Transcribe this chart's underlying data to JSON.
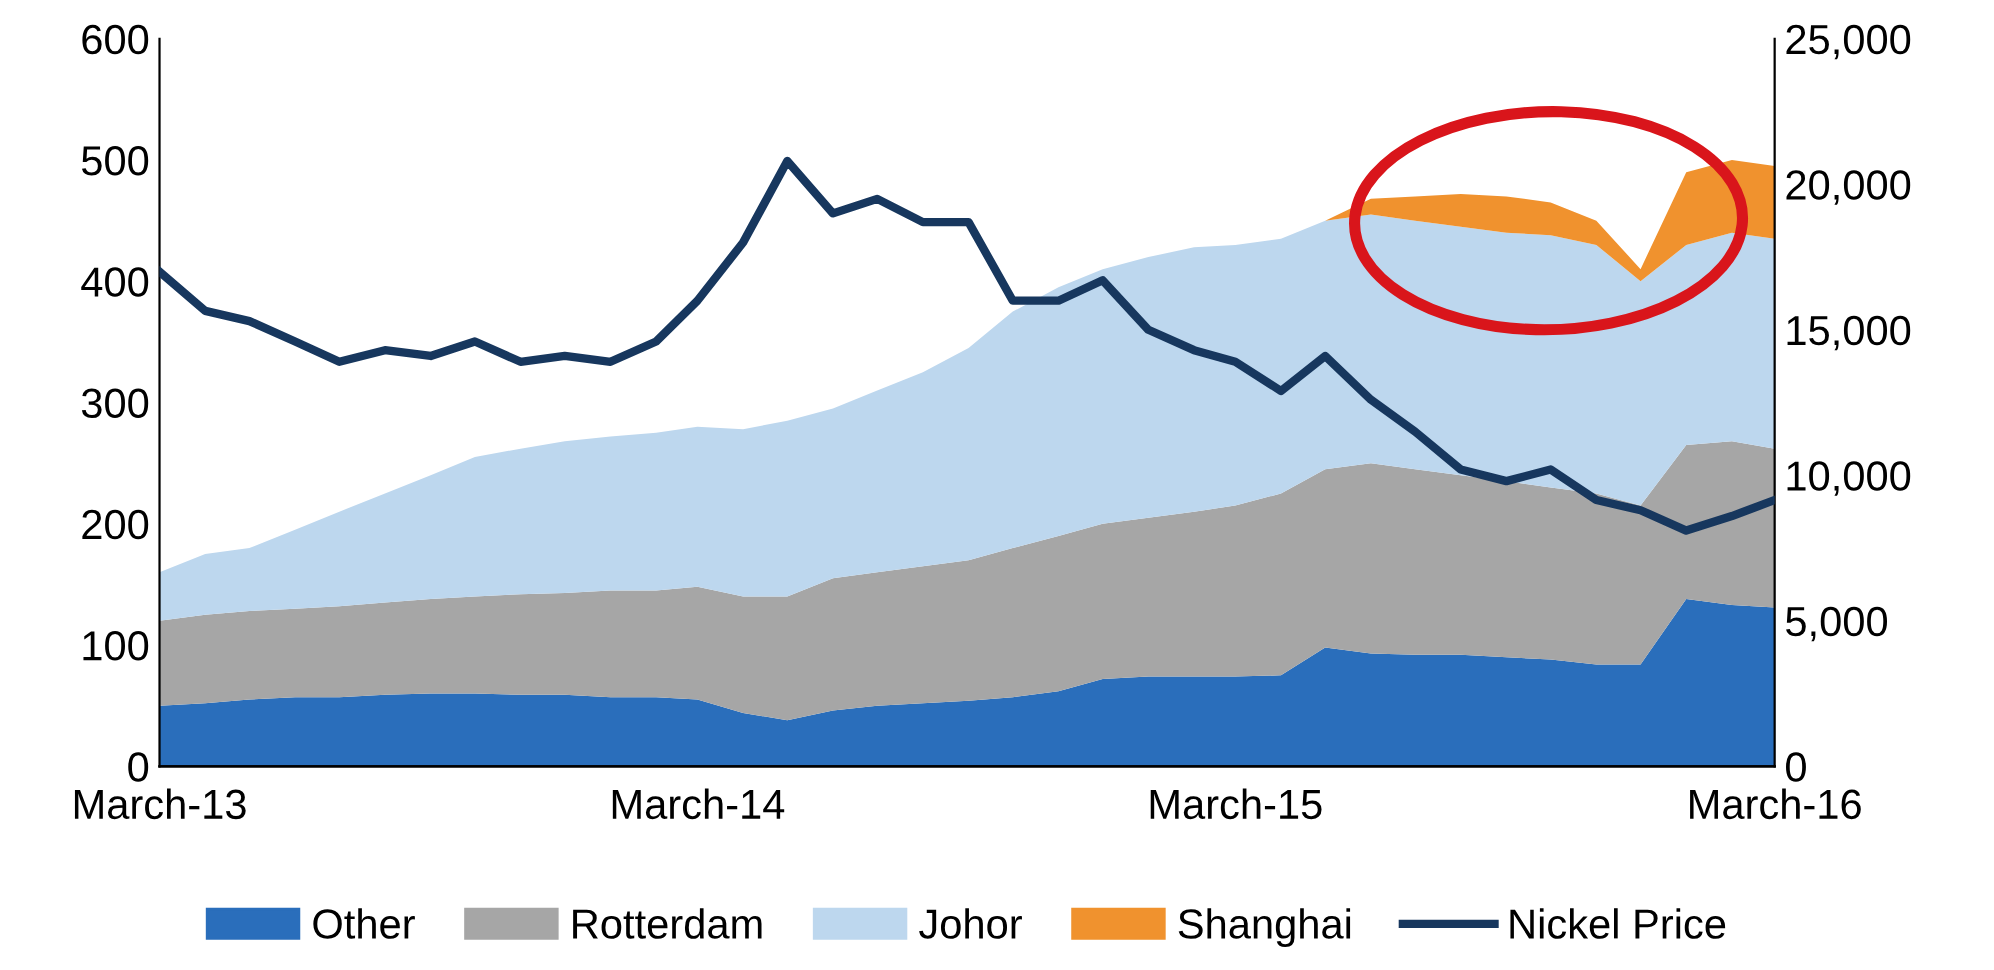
{
  "chart_data": {
    "type": "area",
    "stacked": true,
    "x": [
      "2013-03",
      "2013-04",
      "2013-05",
      "2013-06",
      "2013-07",
      "2013-08",
      "2013-09",
      "2013-10",
      "2013-11",
      "2013-12",
      "2014-01",
      "2014-02",
      "2014-03",
      "2014-04",
      "2014-05",
      "2014-06",
      "2014-07",
      "2014-08",
      "2014-09",
      "2014-10",
      "2014-11",
      "2014-12",
      "2015-01",
      "2015-02",
      "2015-03",
      "2015-04",
      "2015-05",
      "2015-06",
      "2015-07",
      "2015-08",
      "2015-09",
      "2015-10",
      "2015-11",
      "2015-12",
      "2016-01",
      "2016-02",
      "2016-03"
    ],
    "series": [
      {
        "name": "Other",
        "color": "#2a6ebb",
        "values": [
          50,
          52,
          55,
          57,
          57,
          59,
          60,
          60,
          59,
          59,
          57,
          57,
          55,
          44,
          38,
          46,
          50,
          52,
          54,
          57,
          62,
          72,
          74,
          74,
          74,
          75,
          98,
          93,
          92,
          92,
          90,
          88,
          84,
          84,
          138,
          133,
          131
        ]
      },
      {
        "name": "Rotterdam",
        "color": "#a6a6a6",
        "values": [
          70,
          73,
          73,
          73,
          75,
          76,
          78,
          80,
          83,
          84,
          88,
          88,
          93,
          96,
          102,
          109,
          110,
          113,
          116,
          123,
          128,
          128,
          131,
          136,
          141,
          150,
          147,
          157,
          153,
          148,
          145,
          142,
          141,
          131,
          127,
          135,
          131
        ]
      },
      {
        "name": "Johor",
        "color": "#bdd7ee",
        "values": [
          40,
          50,
          52,
          65,
          78,
          90,
          102,
          115,
          120,
          125,
          127,
          130,
          132,
          138,
          145,
          140,
          150,
          160,
          175,
          195,
          205,
          210,
          215,
          218,
          215,
          210,
          205,
          205,
          205,
          205,
          205,
          208,
          205,
          185,
          165,
          172,
          173
        ]
      },
      {
        "name": "Shanghai",
        "color": "#f0922e",
        "values": [
          0,
          0,
          0,
          0,
          0,
          0,
          0,
          0,
          0,
          0,
          0,
          0,
          0,
          0,
          0,
          0,
          0,
          0,
          0,
          0,
          0,
          0,
          0,
          0,
          0,
          0,
          0,
          13,
          20,
          27,
          30,
          27,
          20,
          10,
          60,
          60,
          60
        ]
      },
      {
        "name": "Nickel Price",
        "type": "line",
        "axis": "y2",
        "color": "#17375e",
        "values": [
          17000,
          15650,
          15300,
          14600,
          13900,
          14300,
          14100,
          14600,
          13900,
          14100,
          13900,
          14600,
          16000,
          18000,
          20800,
          19000,
          19500,
          18700,
          18700,
          16000,
          16000,
          16700,
          15000,
          14300,
          13900,
          12900,
          14100,
          12600,
          11500,
          10200,
          9800,
          10200,
          9150,
          8800,
          8100,
          8600,
          9150
        ]
      }
    ],
    "xlim": [
      "2013-03",
      "2016-03"
    ],
    "xticks": [
      {
        "value": "2013-03",
        "label": "March-13"
      },
      {
        "value": "2014-03",
        "label": "March-14"
      },
      {
        "value": "2015-03",
        "label": "March-15"
      },
      {
        "value": "2016-03",
        "label": "March-16"
      }
    ],
    "ylim": [
      0,
      600
    ],
    "yticks": [
      0,
      100,
      200,
      300,
      400,
      500,
      600
    ],
    "y2lim": [
      0,
      25000
    ],
    "y2ticks": [
      {
        "value": 0,
        "label": "0"
      },
      {
        "value": 5000,
        "label": "5,000"
      },
      {
        "value": 10000,
        "label": "10,000"
      },
      {
        "value": 15000,
        "label": "15,000"
      },
      {
        "value": 20000,
        "label": "20,000"
      },
      {
        "value": 25000,
        "label": "25,000"
      }
    ],
    "legend": "bottom",
    "grid": false
  }
}
